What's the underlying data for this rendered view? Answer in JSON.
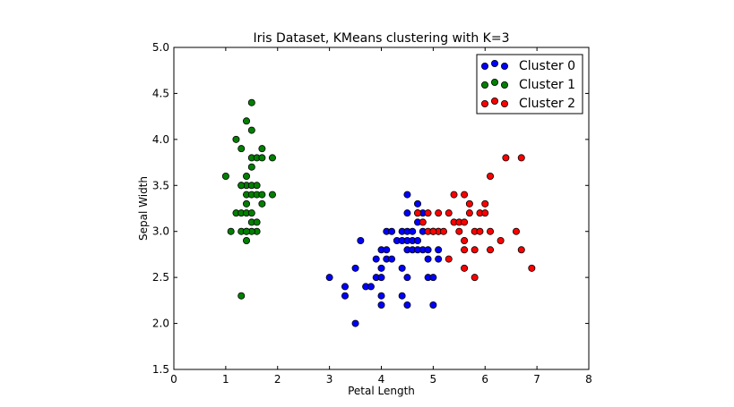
{
  "chart_data": {
    "type": "scatter",
    "title": "Iris Dataset, KMeans clustering with K=3",
    "xlabel": "Petal Length",
    "ylabel": "Sepal Width",
    "xlim": [
      0,
      8
    ],
    "ylim": [
      1.5,
      5.0
    ],
    "xticks": [
      "0",
      "1",
      "2",
      "3",
      "4",
      "5",
      "6",
      "7",
      "8"
    ],
    "yticks": [
      "1.5",
      "2.0",
      "2.5",
      "3.0",
      "3.5",
      "4.0",
      "4.5",
      "5.0"
    ],
    "grid": false,
    "legend_position": "top-right",
    "series": [
      {
        "name": "Cluster 0",
        "color": "#0000ff",
        "points": [
          [
            3.0,
            2.5
          ],
          [
            3.3,
            2.4
          ],
          [
            3.3,
            2.3
          ],
          [
            3.5,
            2.6
          ],
          [
            3.5,
            2.0
          ],
          [
            3.6,
            2.9
          ],
          [
            3.7,
            2.4
          ],
          [
            3.8,
            2.4
          ],
          [
            3.9,
            2.7
          ],
          [
            3.9,
            2.5
          ],
          [
            4.0,
            2.6
          ],
          [
            4.0,
            2.5
          ],
          [
            4.0,
            2.3
          ],
          [
            4.0,
            2.2
          ],
          [
            4.0,
            2.8
          ],
          [
            4.1,
            2.7
          ],
          [
            4.1,
            2.8
          ],
          [
            4.1,
            3.0
          ],
          [
            4.2,
            2.7
          ],
          [
            4.2,
            3.0
          ],
          [
            4.3,
            2.9
          ],
          [
            4.4,
            2.9
          ],
          [
            4.4,
            2.6
          ],
          [
            4.4,
            2.3
          ],
          [
            4.4,
            3.0
          ],
          [
            4.5,
            3.0
          ],
          [
            4.5,
            2.8
          ],
          [
            4.5,
            2.9
          ],
          [
            4.5,
            3.2
          ],
          [
            4.5,
            3.4
          ],
          [
            4.5,
            2.5
          ],
          [
            4.5,
            2.2
          ],
          [
            4.6,
            3.0
          ],
          [
            4.6,
            2.8
          ],
          [
            4.6,
            2.9
          ],
          [
            4.7,
            3.3
          ],
          [
            4.7,
            2.8
          ],
          [
            4.7,
            2.9
          ],
          [
            4.7,
            3.1
          ],
          [
            4.7,
            3.2
          ],
          [
            4.8,
            2.8
          ],
          [
            4.8,
            3.0
          ],
          [
            4.8,
            3.2
          ],
          [
            4.9,
            2.5
          ],
          [
            4.9,
            2.8
          ],
          [
            4.9,
            2.7
          ],
          [
            5.0,
            2.5
          ],
          [
            5.0,
            2.2
          ],
          [
            5.0,
            3.0
          ],
          [
            5.1,
            2.8
          ],
          [
            5.1,
            2.7
          ],
          [
            5.1,
            3.0
          ]
        ]
      },
      {
        "name": "Cluster 1",
        "color": "#008000",
        "points": [
          [
            1.0,
            3.6
          ],
          [
            1.1,
            3.0
          ],
          [
            1.2,
            4.0
          ],
          [
            1.2,
            3.2
          ],
          [
            1.3,
            3.0
          ],
          [
            1.3,
            3.5
          ],
          [
            1.3,
            3.2
          ],
          [
            1.3,
            3.9
          ],
          [
            1.3,
            2.3
          ],
          [
            1.4,
            3.5
          ],
          [
            1.4,
            3.0
          ],
          [
            1.4,
            3.2
          ],
          [
            1.4,
            3.6
          ],
          [
            1.4,
            3.4
          ],
          [
            1.4,
            2.9
          ],
          [
            1.4,
            4.2
          ],
          [
            1.4,
            3.3
          ],
          [
            1.5,
            3.1
          ],
          [
            1.5,
            3.7
          ],
          [
            1.5,
            3.4
          ],
          [
            1.5,
            4.4
          ],
          [
            1.5,
            3.8
          ],
          [
            1.5,
            4.1
          ],
          [
            1.5,
            3.5
          ],
          [
            1.5,
            3.2
          ],
          [
            1.6,
            3.4
          ],
          [
            1.6,
            3.8
          ],
          [
            1.6,
            3.0
          ],
          [
            1.6,
            3.5
          ],
          [
            1.6,
            3.1
          ],
          [
            1.7,
            3.8
          ],
          [
            1.7,
            3.4
          ],
          [
            1.7,
            3.9
          ],
          [
            1.7,
            3.3
          ],
          [
            1.9,
            3.8
          ],
          [
            1.9,
            3.4
          ],
          [
            1.5,
            3.0
          ],
          [
            1.4,
            3.0
          ],
          [
            1.3,
            3.5
          ]
        ]
      },
      {
        "name": "Cluster 2",
        "color": "#ff0000",
        "points": [
          [
            4.8,
            3.1
          ],
          [
            4.9,
            3.0
          ],
          [
            4.9,
            3.2
          ],
          [
            5.0,
            3.0
          ],
          [
            5.1,
            3.0
          ],
          [
            5.1,
            3.2
          ],
          [
            5.2,
            3.0
          ],
          [
            5.3,
            2.7
          ],
          [
            5.3,
            3.2
          ],
          [
            5.4,
            3.4
          ],
          [
            5.4,
            3.1
          ],
          [
            5.5,
            3.1
          ],
          [
            5.5,
            3.0
          ],
          [
            5.6,
            2.6
          ],
          [
            5.6,
            2.8
          ],
          [
            5.6,
            2.9
          ],
          [
            5.6,
            3.4
          ],
          [
            5.6,
            3.1
          ],
          [
            5.7,
            3.2
          ],
          [
            5.7,
            3.3
          ],
          [
            5.8,
            2.5
          ],
          [
            5.8,
            3.0
          ],
          [
            5.9,
            3.0
          ],
          [
            5.9,
            3.2
          ],
          [
            6.0,
            3.2
          ],
          [
            6.0,
            3.3
          ],
          [
            6.1,
            3.6
          ],
          [
            6.1,
            2.8
          ],
          [
            6.1,
            3.0
          ],
          [
            6.3,
            2.9
          ],
          [
            6.4,
            3.8
          ],
          [
            6.6,
            3.0
          ],
          [
            6.7,
            3.8
          ],
          [
            6.7,
            2.8
          ],
          [
            6.9,
            2.6
          ],
          [
            4.7,
            3.2
          ],
          [
            5.0,
            3.0
          ],
          [
            5.8,
            2.8
          ]
        ]
      }
    ]
  }
}
